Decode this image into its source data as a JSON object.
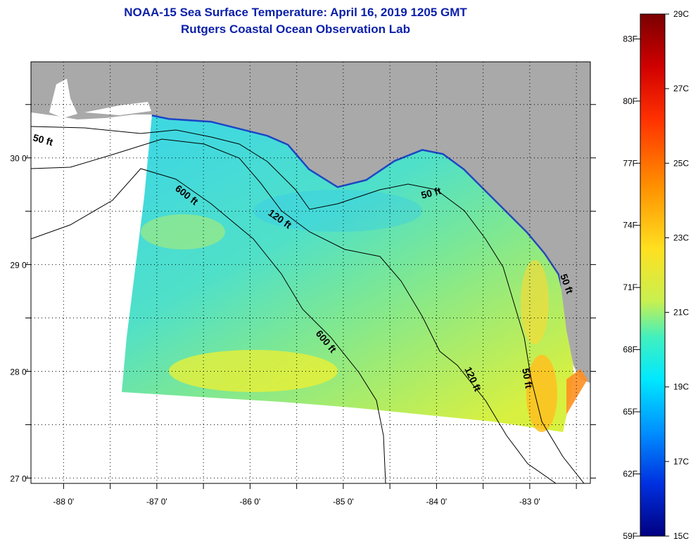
{
  "title": {
    "line1": "NOAA-15 Sea Surface Temperature:  April 16, 2019 1205 GMT",
    "line2": "Rutgers Coastal Ocean Observation Lab"
  },
  "map": {
    "lon_labels": [
      "-88 0'",
      "-87 0'",
      "-86 0'",
      "-85 0'",
      "-84 0'",
      "-83 0'"
    ],
    "lat_labels": [
      "30 0'",
      "29 0'",
      "28 0'",
      "27 0'"
    ],
    "lon_range": [
      -88.35,
      -82.35
    ],
    "lat_range": [
      26.95,
      30.9
    ],
    "colors": {
      "land": "#a9a9a9",
      "no_data": "#ffffff",
      "gridline": "#000000"
    },
    "contours": [
      {
        "label": "50 ft"
      },
      {
        "label": "120 ft"
      },
      {
        "label": "600 ft"
      },
      {
        "label": "600 ft"
      },
      {
        "label": "50 ft"
      },
      {
        "label": "120 ft"
      },
      {
        "label": "50 ft"
      },
      {
        "label": "50 ft"
      }
    ]
  },
  "colorbar": {
    "fahrenheit_labels": [
      "83F",
      "80F",
      "77F",
      "74F",
      "71F",
      "68F",
      "65F",
      "62F",
      "59F"
    ],
    "celsius_labels": [
      "29C",
      "27C",
      "25C",
      "23C",
      "21C",
      "19C",
      "17C",
      "15C"
    ],
    "range_c": [
      15,
      29
    ],
    "colors": [
      "#7a0000",
      "#ff0000",
      "#ff8a00",
      "#ffff20",
      "#20ffd8",
      "#00a0ff",
      "#0040ff",
      "#00008f"
    ]
  }
}
